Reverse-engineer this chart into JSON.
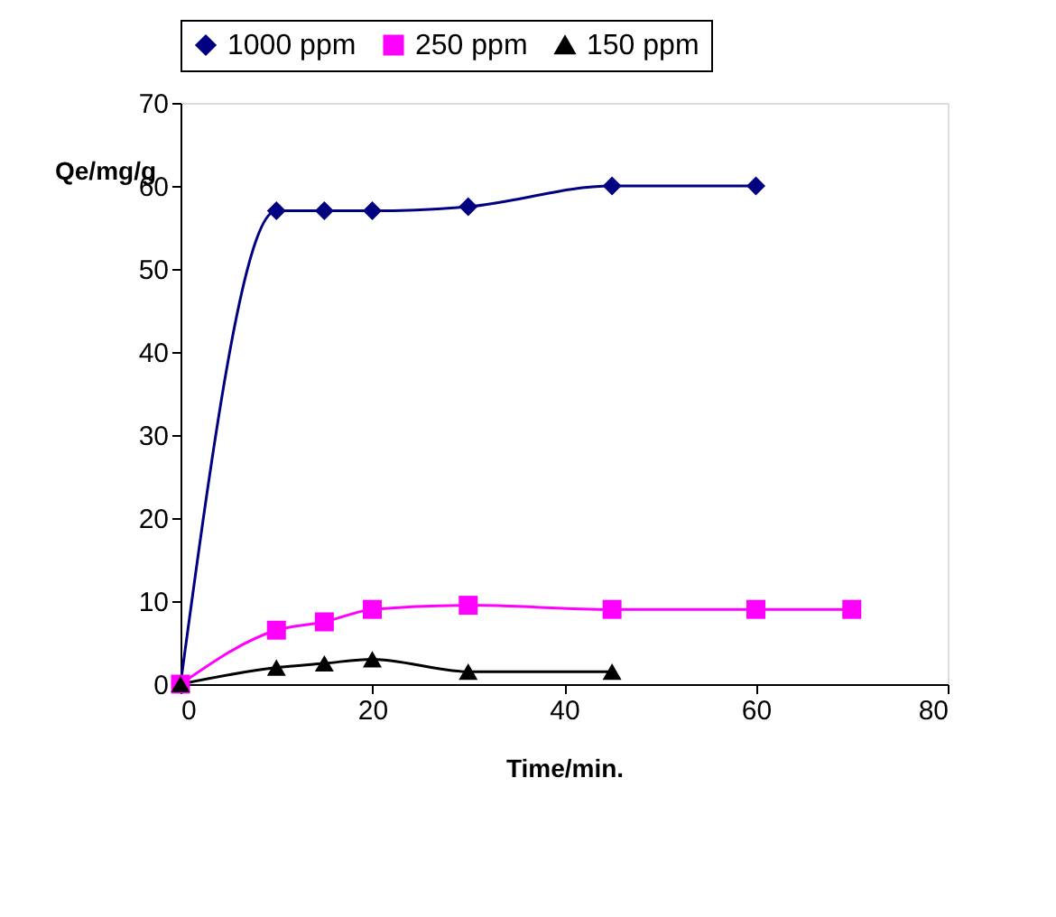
{
  "chart_data": {
    "type": "line",
    "xlabel": "Time/min.",
    "ylabel": "Qe/mg/g",
    "xlim": [
      0,
      80
    ],
    "xticks": [
      0,
      20,
      40,
      60,
      80
    ],
    "ylim": [
      0,
      70
    ],
    "yticks": [
      0,
      10,
      20,
      30,
      40,
      50,
      60,
      70
    ],
    "grid": false,
    "legend": "top",
    "line_style": "solid",
    "series": [
      {
        "name": "1000 ppm",
        "color": "#000080",
        "marker": "diamond",
        "x": [
          0,
          10,
          15,
          20,
          30,
          45,
          60
        ],
        "values": [
          0,
          57,
          57,
          57,
          57.5,
          60,
          60
        ]
      },
      {
        "name": "250 ppm",
        "color": "#ff00ff",
        "marker": "square",
        "x": [
          0,
          10,
          15,
          20,
          30,
          45,
          60,
          70
        ],
        "values": [
          0,
          6.5,
          7.5,
          9,
          9.5,
          9,
          9,
          9
        ]
      },
      {
        "name": "150 ppm",
        "color": "#000000",
        "marker": "triangle",
        "x": [
          0,
          10,
          15,
          20,
          30,
          45
        ],
        "values": [
          0,
          2,
          2.5,
          3,
          1.5,
          1.5
        ]
      }
    ]
  }
}
